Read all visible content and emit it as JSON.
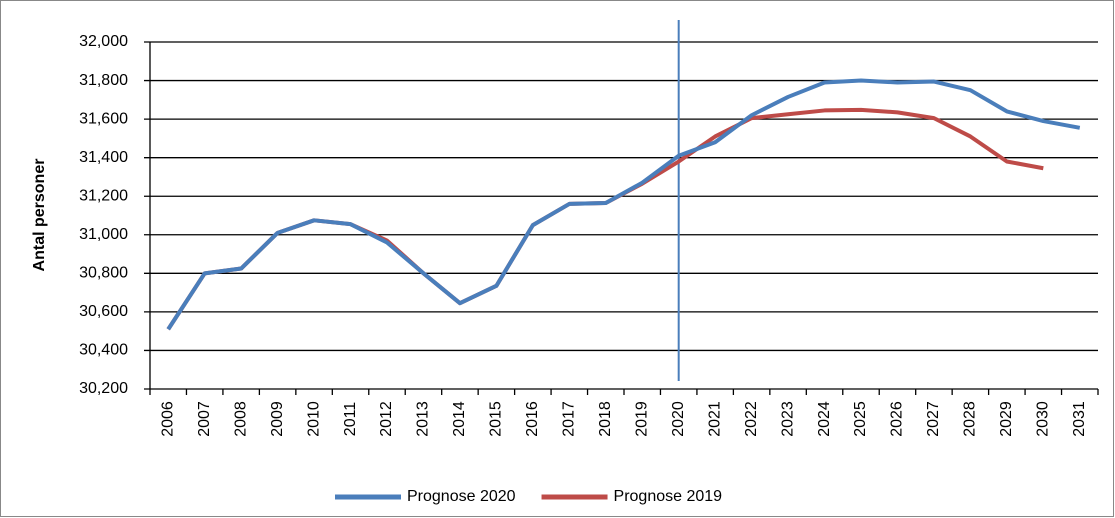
{
  "chart_data": {
    "type": "line",
    "y_label": "Antal personer",
    "categories": [
      "2006",
      "2007",
      "2008",
      "2009",
      "2010",
      "2011",
      "2012",
      "2013",
      "2014",
      "2015",
      "2016",
      "2017",
      "2018",
      "2019",
      "2020",
      "2021",
      "2022",
      "2023",
      "2024",
      "2025",
      "2026",
      "2027",
      "2028",
      "2029",
      "2030",
      "2031"
    ],
    "series": [
      {
        "name": "Prognose 2020",
        "color": "#4a7ebb",
        "values": [
          30510,
          30800,
          30825,
          31010,
          31075,
          31055,
          30960,
          30800,
          30645,
          30735,
          31050,
          31160,
          31165,
          31270,
          31410,
          31480,
          31620,
          31715,
          31790,
          31800,
          31790,
          31795,
          31750,
          31640,
          31590,
          31555
        ]
      },
      {
        "name": "Prognose 2019",
        "color": "#be4b48",
        "values": [
          30510,
          30800,
          30825,
          31010,
          31075,
          31055,
          30970,
          30800,
          30645,
          30735,
          31050,
          31160,
          31165,
          31265,
          31380,
          31510,
          31605,
          31625,
          31645,
          31648,
          31635,
          31605,
          31510,
          31380,
          31345,
          null
        ]
      }
    ],
    "ylim": [
      30200,
      32000
    ],
    "yticks": [
      {
        "value": 30200,
        "label": "30,200"
      },
      {
        "value": 30400,
        "label": "30,400"
      },
      {
        "value": 30600,
        "label": "30,600"
      },
      {
        "value": 30800,
        "label": "30,800"
      },
      {
        "value": 31000,
        "label": "31,000"
      },
      {
        "value": 31200,
        "label": "31,200"
      },
      {
        "value": 31400,
        "label": "31,400"
      },
      {
        "value": 31600,
        "label": "31,600"
      },
      {
        "value": 31800,
        "label": "31,800"
      },
      {
        "value": 32000,
        "label": "32,000"
      }
    ],
    "grid": true,
    "vline_category": "2020",
    "vline_color": "#4a7ebb",
    "legend": "bottom"
  }
}
